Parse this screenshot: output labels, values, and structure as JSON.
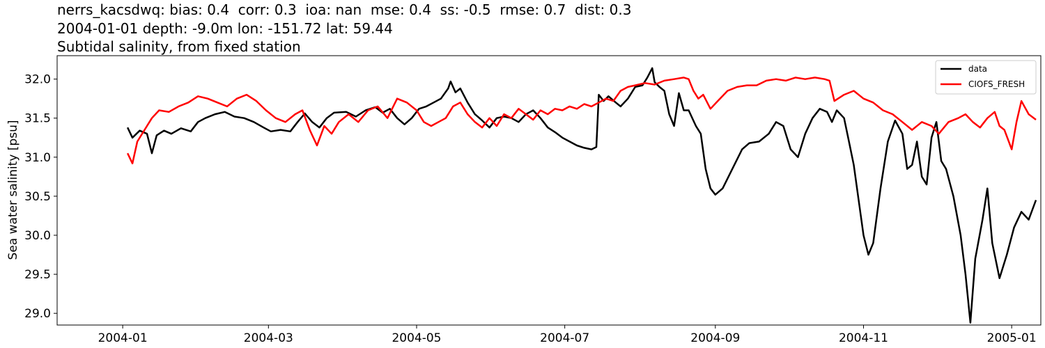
{
  "title_lines": [
    "nerrs_kacsdwq: bias: 0.4  corr: 0.3  ioa: nan  mse: 0.4  ss: -0.5  rmse: 0.7  dist: 0.3",
    "2004-01-01 depth: -9.0m lon: -151.72 lat: 59.44",
    "Subtidal salinity, from fixed station"
  ],
  "chart_data": {
    "type": "line",
    "ylabel": "Sea water salinity [psu]",
    "xlabel": "",
    "xlim": [
      "2003-12-05",
      "2005-01-13"
    ],
    "ylim": [
      28.85,
      32.3
    ],
    "x_ticks": [
      "2004-01",
      "2004-03",
      "2004-05",
      "2004-07",
      "2004-09",
      "2004-11",
      "2005-01"
    ],
    "y_ticks": [
      "29.0",
      "29.5",
      "30.0",
      "30.5",
      "31.0",
      "31.5",
      "32.0"
    ],
    "legend_position": "top-right",
    "grid": false,
    "series": [
      {
        "name": "data",
        "color": "#000000",
        "points": [
          [
            "2004-01-03",
            31.38
          ],
          [
            "2004-01-05",
            31.25
          ],
          [
            "2004-01-08",
            31.34
          ],
          [
            "2004-01-11",
            31.3
          ],
          [
            "2004-01-13",
            31.05
          ],
          [
            "2004-01-15",
            31.28
          ],
          [
            "2004-01-18",
            31.34
          ],
          [
            "2004-01-21",
            31.3
          ],
          [
            "2004-01-25",
            31.37
          ],
          [
            "2004-01-29",
            31.33
          ],
          [
            "2004-02-01",
            31.45
          ],
          [
            "2004-02-04",
            31.5
          ],
          [
            "2004-02-08",
            31.55
          ],
          [
            "2004-02-12",
            31.58
          ],
          [
            "2004-02-16",
            31.52
          ],
          [
            "2004-02-20",
            31.5
          ],
          [
            "2004-02-24",
            31.45
          ],
          [
            "2004-02-28",
            31.38
          ],
          [
            "2004-03-02",
            31.33
          ],
          [
            "2004-03-06",
            31.35
          ],
          [
            "2004-03-10",
            31.33
          ],
          [
            "2004-03-13",
            31.45
          ],
          [
            "2004-03-16",
            31.56
          ],
          [
            "2004-03-19",
            31.45
          ],
          [
            "2004-03-22",
            31.38
          ],
          [
            "2004-03-25",
            31.5
          ],
          [
            "2004-03-28",
            31.57
          ],
          [
            "2004-04-02",
            31.58
          ],
          [
            "2004-04-06",
            31.52
          ],
          [
            "2004-04-10",
            31.6
          ],
          [
            "2004-04-14",
            31.64
          ],
          [
            "2004-04-17",
            31.57
          ],
          [
            "2004-04-20",
            31.62
          ],
          [
            "2004-04-23",
            31.5
          ],
          [
            "2004-04-26",
            31.42
          ],
          [
            "2004-04-29",
            31.5
          ],
          [
            "2004-05-02",
            31.62
          ],
          [
            "2004-05-05",
            31.65
          ],
          [
            "2004-05-08",
            31.7
          ],
          [
            "2004-05-11",
            31.75
          ],
          [
            "2004-05-14",
            31.88
          ],
          [
            "2004-05-15",
            31.97
          ],
          [
            "2004-05-17",
            31.83
          ],
          [
            "2004-05-19",
            31.88
          ],
          [
            "2004-05-22",
            31.7
          ],
          [
            "2004-05-25",
            31.55
          ],
          [
            "2004-05-28",
            31.47
          ],
          [
            "2004-05-31",
            31.38
          ],
          [
            "2004-06-03",
            31.5
          ],
          [
            "2004-06-06",
            31.52
          ],
          [
            "2004-06-09",
            31.5
          ],
          [
            "2004-06-12",
            31.45
          ],
          [
            "2004-06-15",
            31.55
          ],
          [
            "2004-06-18",
            31.6
          ],
          [
            "2004-06-21",
            31.5
          ],
          [
            "2004-06-24",
            31.38
          ],
          [
            "2004-06-27",
            31.32
          ],
          [
            "2004-06-30",
            31.25
          ],
          [
            "2004-07-03",
            31.2
          ],
          [
            "2004-07-06",
            31.15
          ],
          [
            "2004-07-09",
            31.12
          ],
          [
            "2004-07-12",
            31.1
          ],
          [
            "2004-07-14",
            31.13
          ],
          [
            "2004-07-15",
            31.8
          ],
          [
            "2004-07-17",
            31.72
          ],
          [
            "2004-07-19",
            31.78
          ],
          [
            "2004-07-22",
            31.7
          ],
          [
            "2004-07-24",
            31.65
          ],
          [
            "2004-07-27",
            31.75
          ],
          [
            "2004-07-30",
            31.9
          ],
          [
            "2004-08-02",
            31.92
          ],
          [
            "2004-08-04",
            32.02
          ],
          [
            "2004-08-06",
            32.14
          ],
          [
            "2004-08-07",
            31.96
          ],
          [
            "2004-08-09",
            31.9
          ],
          [
            "2004-08-11",
            31.85
          ],
          [
            "2004-08-13",
            31.55
          ],
          [
            "2004-08-15",
            31.4
          ],
          [
            "2004-08-17",
            31.82
          ],
          [
            "2004-08-19",
            31.6
          ],
          [
            "2004-08-21",
            31.6
          ],
          [
            "2004-08-24",
            31.4
          ],
          [
            "2004-08-26",
            31.3
          ],
          [
            "2004-08-28",
            30.85
          ],
          [
            "2004-08-30",
            30.6
          ],
          [
            "2004-09-01",
            30.52
          ],
          [
            "2004-09-04",
            30.6
          ],
          [
            "2004-09-08",
            30.85
          ],
          [
            "2004-09-12",
            31.1
          ],
          [
            "2004-09-15",
            31.18
          ],
          [
            "2004-09-19",
            31.2
          ],
          [
            "2004-09-23",
            31.3
          ],
          [
            "2004-09-26",
            31.45
          ],
          [
            "2004-09-29",
            31.4
          ],
          [
            "2004-10-02",
            31.1
          ],
          [
            "2004-10-05",
            31.0
          ],
          [
            "2004-10-08",
            31.3
          ],
          [
            "2004-10-11",
            31.5
          ],
          [
            "2004-10-14",
            31.62
          ],
          [
            "2004-10-17",
            31.58
          ],
          [
            "2004-10-19",
            31.45
          ],
          [
            "2004-10-21",
            31.6
          ],
          [
            "2004-10-24",
            31.5
          ],
          [
            "2004-10-26",
            31.2
          ],
          [
            "2004-10-28",
            30.9
          ],
          [
            "2004-10-30",
            30.45
          ],
          [
            "2004-11-01",
            30.0
          ],
          [
            "2004-11-03",
            29.75
          ],
          [
            "2004-11-05",
            29.9
          ],
          [
            "2004-11-08",
            30.6
          ],
          [
            "2004-11-11",
            31.2
          ],
          [
            "2004-11-14",
            31.47
          ],
          [
            "2004-11-17",
            31.3
          ],
          [
            "2004-11-19",
            30.85
          ],
          [
            "2004-11-21",
            30.9
          ],
          [
            "2004-11-23",
            31.2
          ],
          [
            "2004-11-25",
            30.75
          ],
          [
            "2004-11-27",
            30.65
          ],
          [
            "2004-11-29",
            31.25
          ],
          [
            "2004-12-01",
            31.45
          ],
          [
            "2004-12-03",
            30.95
          ],
          [
            "2004-12-05",
            30.85
          ],
          [
            "2004-12-08",
            30.5
          ],
          [
            "2004-12-11",
            30.0
          ],
          [
            "2004-12-13",
            29.5
          ],
          [
            "2004-12-15",
            28.88
          ],
          [
            "2004-12-17",
            29.7
          ],
          [
            "2004-12-20",
            30.2
          ],
          [
            "2004-12-22",
            30.6
          ],
          [
            "2004-12-24",
            29.9
          ],
          [
            "2004-12-27",
            29.45
          ],
          [
            "2004-12-30",
            29.75
          ],
          [
            "2005-01-02",
            30.1
          ],
          [
            "2005-01-05",
            30.3
          ],
          [
            "2005-01-08",
            30.2
          ],
          [
            "2005-01-11",
            30.45
          ]
        ]
      },
      {
        "name": "CIOFS_FRESH",
        "color": "#ff0000",
        "points": [
          [
            "2004-01-03",
            31.05
          ],
          [
            "2004-01-05",
            30.92
          ],
          [
            "2004-01-07",
            31.2
          ],
          [
            "2004-01-10",
            31.35
          ],
          [
            "2004-01-13",
            31.5
          ],
          [
            "2004-01-16",
            31.6
          ],
          [
            "2004-01-20",
            31.58
          ],
          [
            "2004-01-24",
            31.65
          ],
          [
            "2004-01-28",
            31.7
          ],
          [
            "2004-02-01",
            31.78
          ],
          [
            "2004-02-05",
            31.75
          ],
          [
            "2004-02-09",
            31.7
          ],
          [
            "2004-02-13",
            31.65
          ],
          [
            "2004-02-17",
            31.75
          ],
          [
            "2004-02-21",
            31.8
          ],
          [
            "2004-02-25",
            31.72
          ],
          [
            "2004-02-29",
            31.6
          ],
          [
            "2004-03-04",
            31.5
          ],
          [
            "2004-03-08",
            31.45
          ],
          [
            "2004-03-12",
            31.55
          ],
          [
            "2004-03-15",
            31.6
          ],
          [
            "2004-03-18",
            31.35
          ],
          [
            "2004-03-21",
            31.15
          ],
          [
            "2004-03-24",
            31.4
          ],
          [
            "2004-03-27",
            31.3
          ],
          [
            "2004-03-30",
            31.45
          ],
          [
            "2004-04-03",
            31.55
          ],
          [
            "2004-04-07",
            31.45
          ],
          [
            "2004-04-11",
            31.6
          ],
          [
            "2004-04-15",
            31.65
          ],
          [
            "2004-04-19",
            31.5
          ],
          [
            "2004-04-23",
            31.75
          ],
          [
            "2004-04-27",
            31.7
          ],
          [
            "2004-05-01",
            31.6
          ],
          [
            "2004-05-04",
            31.45
          ],
          [
            "2004-05-07",
            31.4
          ],
          [
            "2004-05-10",
            31.45
          ],
          [
            "2004-05-13",
            31.5
          ],
          [
            "2004-05-16",
            31.65
          ],
          [
            "2004-05-19",
            31.7
          ],
          [
            "2004-05-22",
            31.55
          ],
          [
            "2004-05-25",
            31.45
          ],
          [
            "2004-05-28",
            31.38
          ],
          [
            "2004-05-31",
            31.5
          ],
          [
            "2004-06-03",
            31.4
          ],
          [
            "2004-06-06",
            31.55
          ],
          [
            "2004-06-09",
            31.5
          ],
          [
            "2004-06-12",
            31.62
          ],
          [
            "2004-06-15",
            31.55
          ],
          [
            "2004-06-18",
            31.48
          ],
          [
            "2004-06-21",
            31.6
          ],
          [
            "2004-06-24",
            31.55
          ],
          [
            "2004-06-27",
            31.62
          ],
          [
            "2004-06-30",
            31.6
          ],
          [
            "2004-07-03",
            31.65
          ],
          [
            "2004-07-06",
            31.62
          ],
          [
            "2004-07-09",
            31.68
          ],
          [
            "2004-07-12",
            31.65
          ],
          [
            "2004-07-15",
            31.7
          ],
          [
            "2004-07-18",
            31.75
          ],
          [
            "2004-07-21",
            31.72
          ],
          [
            "2004-07-24",
            31.85
          ],
          [
            "2004-07-27",
            31.9
          ],
          [
            "2004-07-30",
            31.92
          ],
          [
            "2004-08-03",
            31.95
          ],
          [
            "2004-08-07",
            31.93
          ],
          [
            "2004-08-11",
            31.98
          ],
          [
            "2004-08-15",
            32.0
          ],
          [
            "2004-08-19",
            32.02
          ],
          [
            "2004-08-21",
            32.0
          ],
          [
            "2004-08-23",
            31.85
          ],
          [
            "2004-08-25",
            31.75
          ],
          [
            "2004-08-27",
            31.8
          ],
          [
            "2004-08-30",
            31.62
          ],
          [
            "2004-09-02",
            31.72
          ],
          [
            "2004-09-06",
            31.85
          ],
          [
            "2004-09-10",
            31.9
          ],
          [
            "2004-09-14",
            31.92
          ],
          [
            "2004-09-18",
            31.92
          ],
          [
            "2004-09-22",
            31.98
          ],
          [
            "2004-09-26",
            32.0
          ],
          [
            "2004-09-30",
            31.98
          ],
          [
            "2004-10-04",
            32.02
          ],
          [
            "2004-10-08",
            32.0
          ],
          [
            "2004-10-12",
            32.02
          ],
          [
            "2004-10-16",
            32.0
          ],
          [
            "2004-10-18",
            31.98
          ],
          [
            "2004-10-20",
            31.72
          ],
          [
            "2004-10-24",
            31.8
          ],
          [
            "2004-10-28",
            31.85
          ],
          [
            "2004-11-01",
            31.75
          ],
          [
            "2004-11-05",
            31.7
          ],
          [
            "2004-11-09",
            31.6
          ],
          [
            "2004-11-13",
            31.55
          ],
          [
            "2004-11-17",
            31.45
          ],
          [
            "2004-11-21",
            31.35
          ],
          [
            "2004-11-25",
            31.45
          ],
          [
            "2004-11-29",
            31.4
          ],
          [
            "2004-12-02",
            31.3
          ],
          [
            "2004-12-06",
            31.45
          ],
          [
            "2004-12-10",
            31.5
          ],
          [
            "2004-12-13",
            31.55
          ],
          [
            "2004-12-16",
            31.45
          ],
          [
            "2004-12-19",
            31.38
          ],
          [
            "2004-12-22",
            31.5
          ],
          [
            "2004-12-25",
            31.58
          ],
          [
            "2004-12-27",
            31.4
          ],
          [
            "2004-12-29",
            31.35
          ],
          [
            "2005-01-01",
            31.1
          ],
          [
            "2005-01-03",
            31.45
          ],
          [
            "2005-01-05",
            31.72
          ],
          [
            "2005-01-08",
            31.55
          ],
          [
            "2005-01-11",
            31.48
          ]
        ]
      }
    ]
  }
}
